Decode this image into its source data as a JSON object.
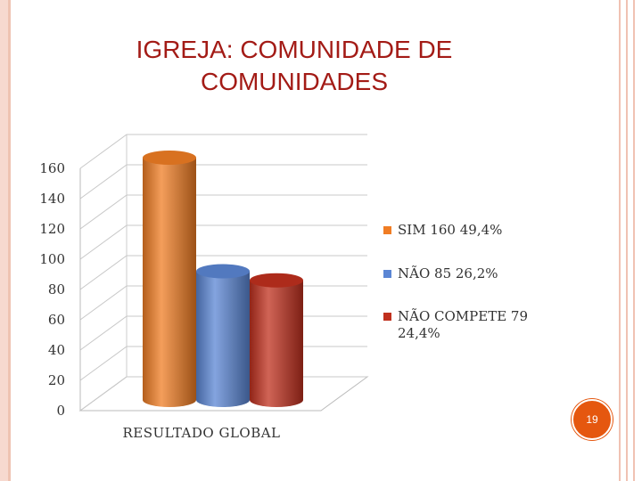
{
  "slide": {
    "title_line1": "IGREJA: COMUNIDADE DE",
    "title_line2": "COMUNIDADES",
    "page_number": "19"
  },
  "chart_data": {
    "type": "bar",
    "categories": [
      "RESULTADO GLOBAL"
    ],
    "series": [
      {
        "name": "SIM 160 49,4%",
        "values": [
          160
        ],
        "color": "#f07d24"
      },
      {
        "name": "NÃO 85 26,2%",
        "values": [
          85
        ],
        "color": "#5b86d4"
      },
      {
        "name": "NÃO COMPETE 79 24,4%",
        "values": [
          79
        ],
        "color": "#c0301e"
      }
    ],
    "ylim": [
      0,
      160
    ],
    "yticks": [
      0,
      20,
      40,
      60,
      80,
      100,
      120,
      140,
      160
    ],
    "grid": true,
    "legend_position": "right"
  }
}
